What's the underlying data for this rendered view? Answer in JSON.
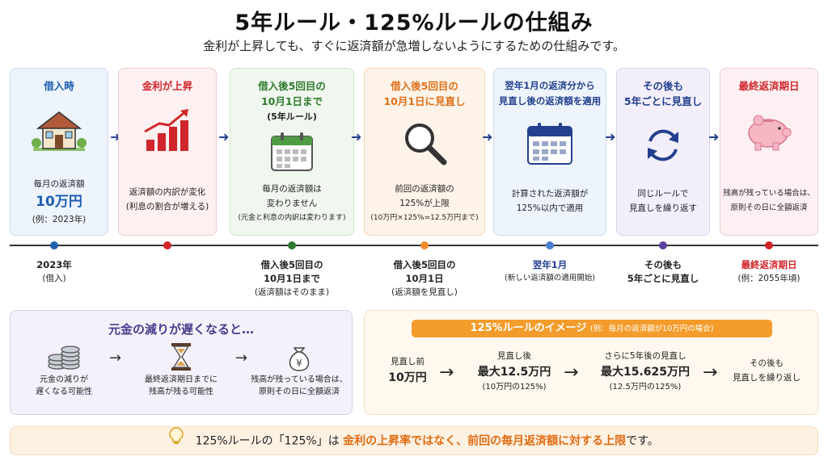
{
  "title": "5年ルール・125%ルールの仕組み",
  "subtitle": "金利が上昇しても、すぐに返済額が急増しないようにするための仕組みです。",
  "steps": [
    {
      "head": "借入時",
      "line1": "毎月の返済額",
      "line2": "10万円",
      "line3": "(例：2023年)"
    },
    {
      "head": "金利が上昇",
      "line1": "返済額の内訳が変化",
      "line2": "(利息の割合が増える)"
    },
    {
      "head1": "借入後5回目の",
      "head2": "10月1日まで",
      "head3": "(5年ルール)",
      "line1": "毎月の返済額は",
      "line2": "変わりません",
      "line3": "(元金と利息の内訳は変わります)"
    },
    {
      "head1": "借入後5回目の",
      "head2": "10月1日に見直し",
      "line1": "前回の返済額の",
      "line2": "125%が上限",
      "line3": "(10万円×125%=12.5万円まで)"
    },
    {
      "head1": "翌年1月の返済分から",
      "head2": "見直し後の返済額を適用",
      "line1": "計算された返済額が",
      "line2": "125%以内で適用"
    },
    {
      "head1": "その後も",
      "head2": "5年ごとに見直し",
      "line1": "同じルールで",
      "line2": "見直しを繰り返す"
    },
    {
      "head": "最終返済期日",
      "line1": "残高が残っている場合は、",
      "line2": "原則その日に全額返済"
    }
  ],
  "timeline": [
    {
      "l1": "2023年",
      "l2": "(借入)"
    },
    {
      "l1": "借入後5回目の",
      "l2": "10月1日まで",
      "l3": "(返済額はそのまま)"
    },
    {
      "l1": "借入後5回目の",
      "l2": "10月1日",
      "l3": "(返済額を見直し)"
    },
    {
      "l1": "翌年1月",
      "l2": "(新しい返済額の適用開始)"
    },
    {
      "l1": "その後も",
      "l2": "5年ごとに見直し"
    },
    {
      "l1": "最終返済期日",
      "l2": "(例：2055年頃)"
    }
  ],
  "principal": {
    "title": "元金の減りが遅くなると…",
    "items": [
      {
        "l1": "元金の減りが",
        "l2": "遅くなる可能性"
      },
      {
        "l1": "最終返済期日までに",
        "l2": "残高が残る可能性"
      },
      {
        "l1": "残高が残っている場合は、",
        "l2": "原則その日に全額返済"
      }
    ]
  },
  "image125": {
    "title": "125%ルールのイメージ",
    "note": "(例：毎月の返済額が10万円の場合)",
    "before_label": "見直し前",
    "before_value": "10万円",
    "after_label": "見直し後",
    "after_value": "最大12.5万円",
    "after_note": "(10万円の125%)",
    "next_label": "さらに5年後の見直し",
    "next_value": "最大15.625万円",
    "next_note": "(12.5万円の125%)",
    "then_l1": "その後も",
    "then_l2": "見直しを繰り返し"
  },
  "tip": {
    "prefix": "125%ルールの「125%」は",
    "highlight": "金利の上昇率ではなく、前回の毎月返済額に対する上限",
    "suffix": "です。"
  },
  "colors": {
    "blue": "#1f5fb0",
    "red": "#d0262b",
    "green": "#2f7a2f",
    "orange": "#e0701a",
    "navy": "#23408e",
    "purple": "#5b3f9e"
  },
  "icons": [
    "house-icon",
    "rising-chart-icon",
    "calendar-icon",
    "magnifier-icon",
    "calendar-icon",
    "refresh-icon",
    "piggy-bank-icon",
    "coins-icon",
    "hourglass-icon",
    "money-bag-icon",
    "lightbulb-icon"
  ]
}
